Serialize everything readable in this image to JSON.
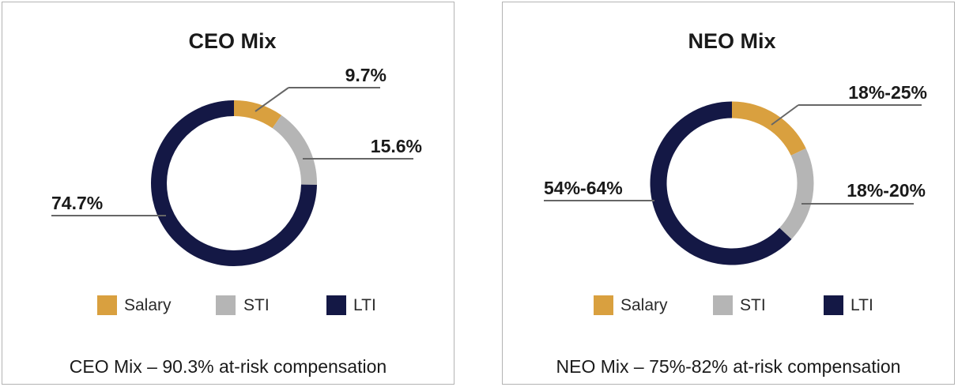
{
  "colors": {
    "salary": "#D9A03F",
    "sti": "#B5B5B5",
    "lti": "#141845",
    "leader": "#666666"
  },
  "chart_data": [
    {
      "type": "pie",
      "variant": "donut",
      "title": "CEO Mix",
      "categories": [
        "Salary",
        "STI",
        "LTI"
      ],
      "values": [
        9.7,
        15.6,
        74.7
      ],
      "labels": [
        "9.7%",
        "15.6%",
        "74.7%"
      ],
      "legend": [
        "Salary",
        "STI",
        "LTI"
      ],
      "legend_position": "bottom",
      "caption": "CEO Mix – 90.3% at-risk compensation"
    },
    {
      "type": "pie",
      "variant": "donut",
      "title": "NEO Mix",
      "categories": [
        "Salary",
        "STI",
        "LTI"
      ],
      "values": [
        18,
        19,
        63
      ],
      "labels": [
        "18%-25%",
        "18%-20%",
        "54%-64%"
      ],
      "legend": [
        "Salary",
        "STI",
        "LTI"
      ],
      "legend_position": "bottom",
      "caption": "NEO Mix – 75%-82% at-risk compensation"
    }
  ]
}
